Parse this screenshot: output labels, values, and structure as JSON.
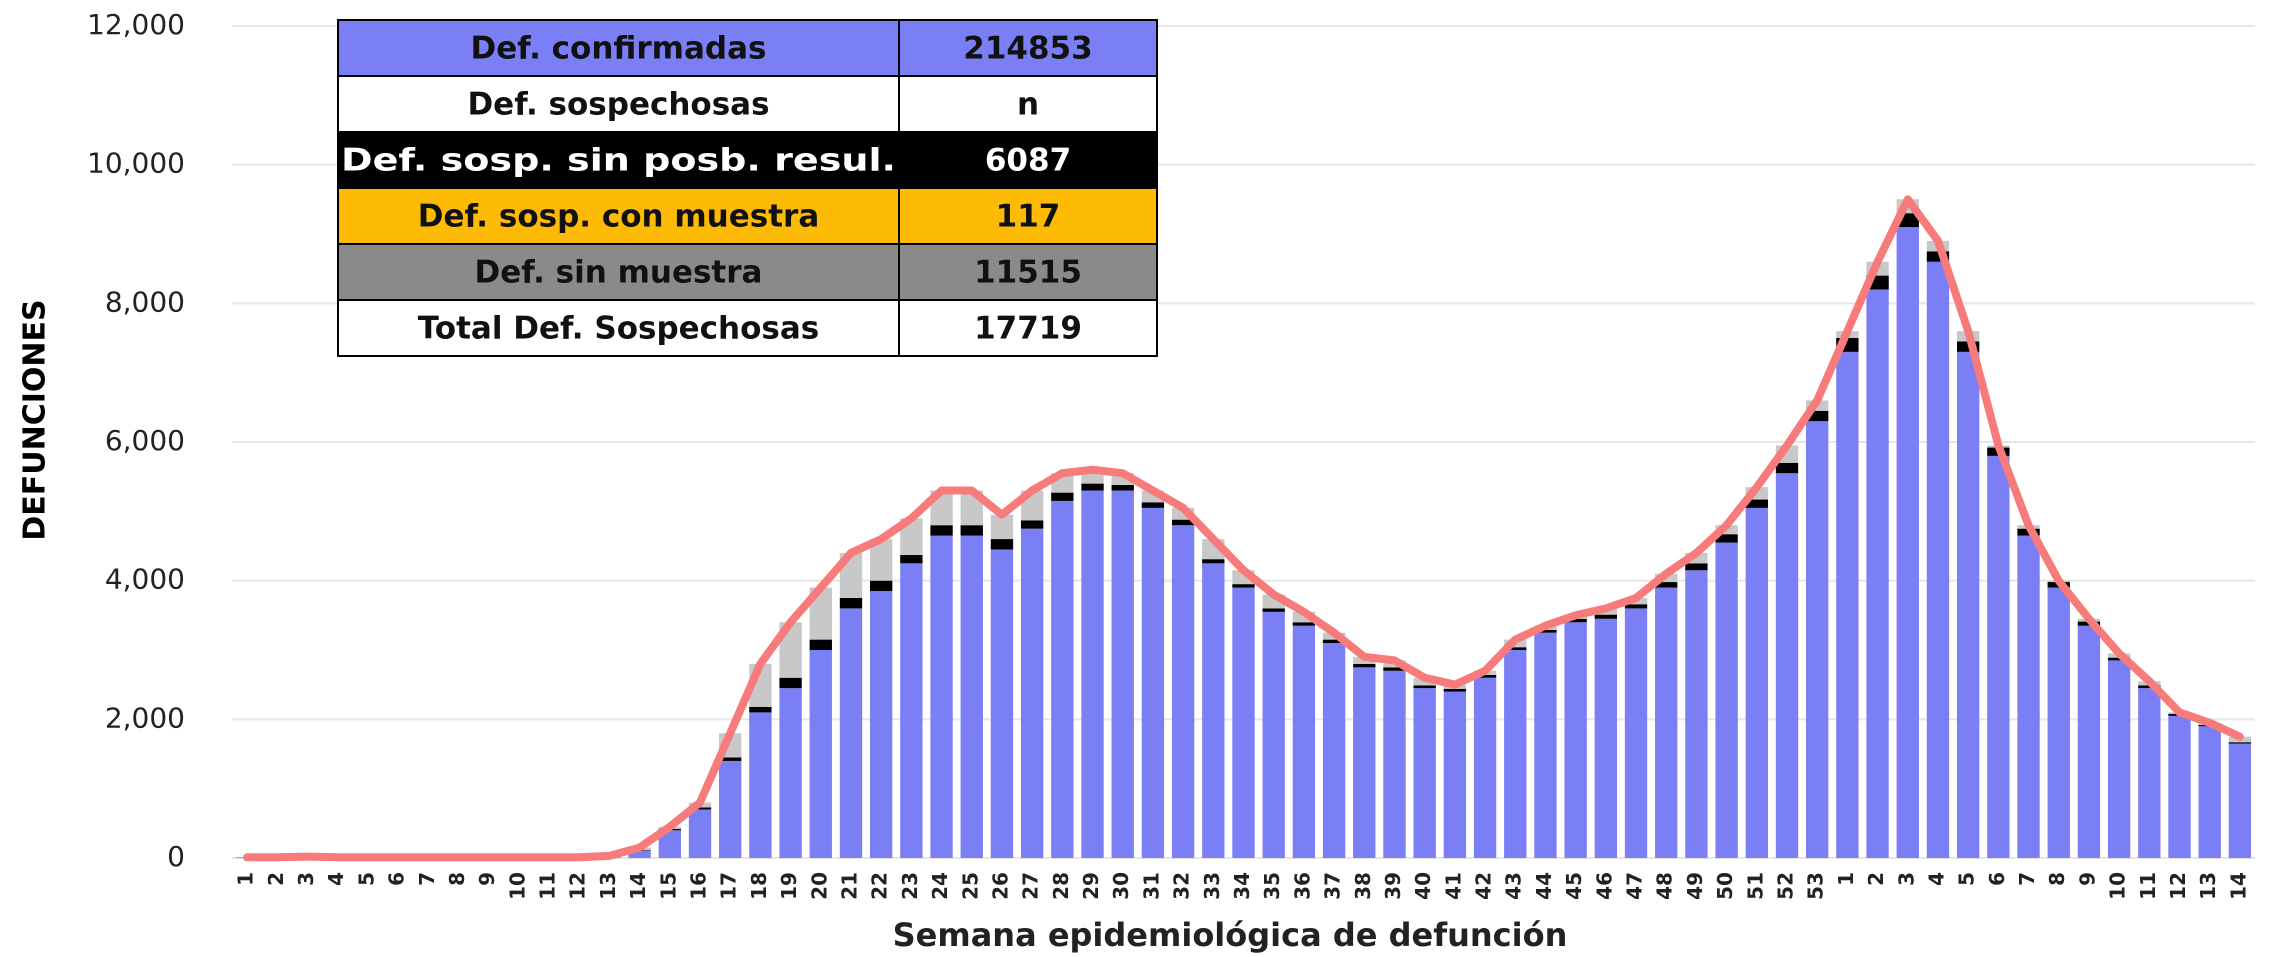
{
  "chart_data": {
    "type": "stacked_bar_line",
    "ylabel": "DEFUNCIONES",
    "xlabel": "Semana epidemiológica de defunción",
    "categories": [
      "1",
      "2",
      "3",
      "4",
      "5",
      "6",
      "7",
      "8",
      "9",
      "10",
      "11",
      "12",
      "13",
      "14",
      "15",
      "16",
      "17",
      "18",
      "19",
      "20",
      "21",
      "22",
      "23",
      "24",
      "25",
      "26",
      "27",
      "28",
      "29",
      "30",
      "31",
      "32",
      "33",
      "34",
      "35",
      "36",
      "37",
      "38",
      "39",
      "40",
      "41",
      "42",
      "43",
      "44",
      "45",
      "46",
      "47",
      "48",
      "49",
      "50",
      "51",
      "52",
      "53",
      "1",
      "2",
      "3",
      "4",
      "5",
      "6",
      "7",
      "8",
      "9",
      "10",
      "11",
      "12",
      "13",
      "14"
    ],
    "series": [
      {
        "color": "#7b7ff5",
        "values": [
          10,
          10,
          20,
          10,
          10,
          10,
          10,
          10,
          10,
          10,
          10,
          10,
          30,
          100,
          400,
          700,
          1400,
          2100,
          2450,
          3000,
          3600,
          3850,
          4250,
          4650,
          4650,
          4450,
          4750,
          5150,
          5300,
          5300,
          5050,
          4800,
          4250,
          3900,
          3550,
          3350,
          3100,
          2750,
          2700,
          2450,
          2400,
          2600,
          3000,
          3250,
          3400,
          3450,
          3600,
          3900,
          4150,
          4550,
          5050,
          5550,
          6300,
          7300,
          8200,
          9100,
          8600,
          7300,
          5800,
          4650,
          3900,
          3350,
          2850,
          2450,
          2050,
          1900,
          1650
        ]
      },
      {
        "color": "#000000",
        "values": [
          0,
          0,
          0,
          0,
          0,
          0,
          0,
          0,
          0,
          0,
          0,
          0,
          0,
          10,
          20,
          30,
          50,
          80,
          150,
          150,
          150,
          150,
          120,
          150,
          150,
          150,
          120,
          120,
          100,
          80,
          80,
          80,
          60,
          50,
          50,
          50,
          50,
          50,
          50,
          40,
          40,
          40,
          40,
          40,
          50,
          60,
          60,
          80,
          100,
          120,
          120,
          150,
          150,
          200,
          200,
          200,
          150,
          150,
          120,
          100,
          80,
          60,
          40,
          40,
          30,
          20,
          20
        ]
      },
      {
        "color": "#c8c8c8",
        "values": [
          0,
          0,
          0,
          0,
          0,
          0,
          0,
          0,
          0,
          0,
          0,
          0,
          0,
          40,
          30,
          70,
          350,
          620,
          800,
          750,
          650,
          600,
          530,
          500,
          500,
          350,
          430,
          280,
          200,
          170,
          170,
          170,
          290,
          200,
          200,
          150,
          100,
          100,
          100,
          110,
          60,
          60,
          110,
          60,
          50,
          90,
          90,
          120,
          150,
          130,
          180,
          250,
          150,
          100,
          200,
          200,
          150,
          150,
          30,
          50,
          20,
          40,
          60,
          60,
          20,
          30,
          80
        ]
      },
      {
        "type": "line",
        "color": "#f77b7b",
        "values": [
          10,
          10,
          20,
          10,
          10,
          10,
          10,
          10,
          10,
          10,
          10,
          10,
          30,
          150,
          450,
          800,
          1800,
          2800,
          3400,
          3900,
          4400,
          4600,
          4900,
          5300,
          5300,
          4950,
          5300,
          5550,
          5600,
          5550,
          5300,
          5050,
          4600,
          4150,
          3800,
          3550,
          3250,
          2900,
          2850,
          2600,
          2500,
          2700,
          3150,
          3350,
          3500,
          3600,
          3750,
          4100,
          4400,
          4800,
          5350,
          5950,
          6600,
          7600,
          8600,
          9500,
          8900,
          7600,
          5950,
          4800,
          4000,
          3450,
          2950,
          2550,
          2100,
          1950,
          1750
        ]
      }
    ],
    "ylim": [
      0,
      12000
    ],
    "yticks": [
      0,
      {
        "value": 2000,
        "label": "2,000"
      },
      {
        "value": 4000,
        "label": "4,000"
      },
      {
        "value": 6000,
        "label": "6,000"
      },
      {
        "value": 8000,
        "label": "8,000"
      },
      {
        "value": 10000,
        "label": "10,000"
      },
      {
        "value": 12000,
        "label": "12,000"
      }
    ],
    "grid": true
  },
  "table": {
    "rows": [
      [
        "Def. confirmadas",
        "214853"
      ],
      [
        "Def. sospechosas",
        "n"
      ],
      [
        "Def. sosp. sin posb. resul.",
        "6087"
      ],
      [
        "Def. sosp. con  muestra",
        "117"
      ],
      [
        "Def. sin muestra",
        "11515"
      ],
      [
        "Total Def. Sospechosas",
        "17719"
      ]
    ]
  }
}
